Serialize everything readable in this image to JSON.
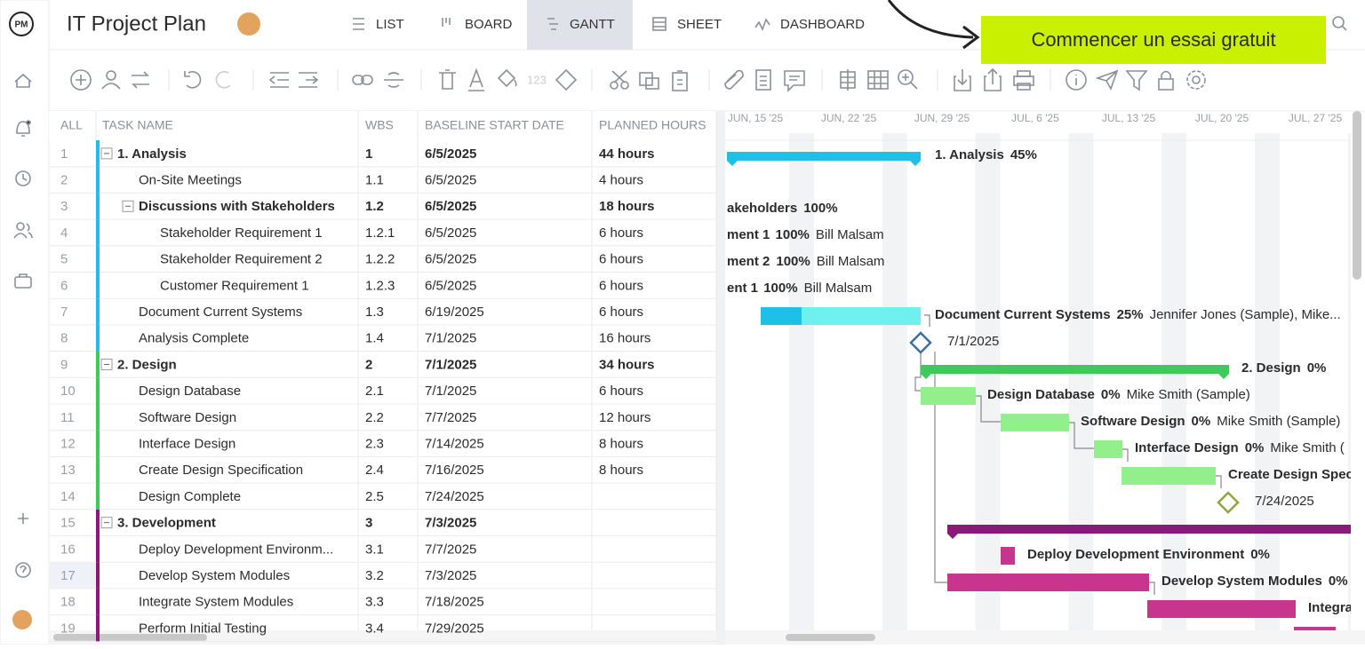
{
  "header": {
    "logo": "PM",
    "title": "IT Project Plan",
    "tabs": [
      "LIST",
      "BOARD",
      "GANTT",
      "SHEET",
      "DASHBOARD"
    ],
    "cta": "Commencer un essai gratuit"
  },
  "toolbar": {
    "hours_label": "123"
  },
  "table": {
    "columns": [
      "ALL",
      "TASK NAME",
      "WBS",
      "BASELINE START DATE",
      "PLANNED HOURS"
    ],
    "rows": [
      [
        "1",
        "1. Analysis",
        "1",
        "6/5/2025",
        "44 hours"
      ],
      [
        "2",
        "On-Site Meetings",
        "1.1",
        "6/5/2025",
        "4 hours"
      ],
      [
        "3",
        "Discussions with Stakeholders",
        "1.2",
        "6/5/2025",
        "18 hours"
      ],
      [
        "4",
        "Stakeholder Requirement 1",
        "1.2.1",
        "6/5/2025",
        "6 hours"
      ],
      [
        "5",
        "Stakeholder Requirement 2",
        "1.2.2",
        "6/5/2025",
        "6 hours"
      ],
      [
        "6",
        "Customer Requirement 1",
        "1.2.3",
        "6/5/2025",
        "6 hours"
      ],
      [
        "7",
        "Document Current Systems",
        "1.3",
        "6/19/2025",
        "6 hours"
      ],
      [
        "8",
        "Analysis Complete",
        "1.4",
        "7/1/2025",
        "16 hours"
      ],
      [
        "9",
        "2. Design",
        "2",
        "7/1/2025",
        "34 hours"
      ],
      [
        "10",
        "Design Database",
        "2.1",
        "7/1/2025",
        "6 hours"
      ],
      [
        "11",
        "Software Design",
        "2.2",
        "7/7/2025",
        "12 hours"
      ],
      [
        "12",
        "Interface Design",
        "2.3",
        "7/14/2025",
        "8 hours"
      ],
      [
        "13",
        "Create Design Specification",
        "2.4",
        "7/16/2025",
        "8 hours"
      ],
      [
        "14",
        "Design Complete",
        "2.5",
        "7/24/2025"
      ],
      [
        "15",
        "3. Development",
        "3",
        "7/3/2025"
      ],
      [
        "16",
        "Deploy Development Environm...",
        "3.1",
        "7/7/2025"
      ],
      [
        "17",
        "Develop System Modules",
        "3.2",
        "7/3/2025"
      ],
      [
        "18",
        "Integrate System Modules",
        "3.3",
        "7/18/2025"
      ],
      [
        "19",
        "Perform Initial Testing",
        "3.4",
        "7/29/2025"
      ]
    ]
  },
  "gantt": {
    "dates": [
      "JUN, 15 '25",
      "JUN, 22 '25",
      "JUN, 29 '25",
      "JUL, 6 '25",
      "JUL, 13 '25",
      "JUL, 20 '25",
      "JUL, 27 '25"
    ],
    "labels": [
      {
        "name": "1. Analysis",
        "percent": "45%"
      },
      {
        "name": "akeholders",
        "percent": "100%"
      },
      {
        "name": "ment 1",
        "percent": "100%",
        "assignee": "Bill Malsam"
      },
      {
        "name": "ment 2",
        "percent": "100%",
        "assignee": "Bill Malsam"
      },
      {
        "name": "ent 1",
        "percent": "100%",
        "assignee": "Bill Malsam"
      },
      {
        "name": "Document Current Systems",
        "percent": "25%",
        "assignee": "Jennifer Jones (Sample), Mike..."
      },
      {
        "date": "7/1/2025"
      },
      {
        "name": "2. Design",
        "percent": "0%"
      },
      {
        "name": "Design Database",
        "percent": "0%",
        "assignee": "Mike Smith (Sample)"
      },
      {
        "name": "Software Design",
        "percent": "0%",
        "assignee": "Mike Smith (Sample)"
      },
      {
        "name": "Interface Design",
        "percent": "0%",
        "assignee": "Mike Smith ("
      },
      {
        "name": "Create Design Spec"
      },
      {
        "date": "7/24/2025"
      },
      {
        "name": "Deploy Development Environment",
        "percent": "0%"
      },
      {
        "name": "Develop System Modules",
        "percent": "0%"
      },
      {
        "name": "Integra"
      }
    ]
  }
}
